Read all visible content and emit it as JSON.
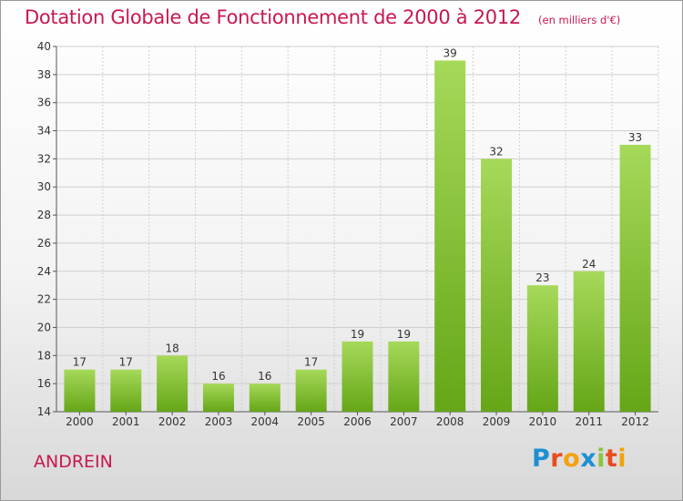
{
  "title": "Dotation Globale de Fonctionnement de 2000 à 2012",
  "subtitle": "(en milliers d'€)",
  "commune": "ANDREIN",
  "logo": {
    "text": "Proxiti",
    "letter_colors": [
      "#1c8fd3",
      "#e84c1e",
      "#f3a20d",
      "#1c8fd3",
      "#8bc53f",
      "#e84c1e",
      "#f3a20d"
    ]
  },
  "colors": {
    "title": "#c8184f",
    "bar_light": "#a6d95a",
    "bar_dark": "#65a617",
    "grid": "#d0d0d0"
  },
  "chart_data": {
    "type": "bar",
    "categories": [
      "2000",
      "2001",
      "2002",
      "2003",
      "2004",
      "2005",
      "2006",
      "2007",
      "2008",
      "2009",
      "2010",
      "2011",
      "2012"
    ],
    "values": [
      17,
      17,
      18,
      16,
      16,
      17,
      19,
      19,
      39,
      32,
      23,
      24,
      33
    ],
    "ylim": [
      14,
      40
    ],
    "yticks": [
      14,
      16,
      18,
      20,
      22,
      24,
      26,
      28,
      30,
      32,
      34,
      36,
      38,
      40
    ],
    "grid": true,
    "data_labels": true
  }
}
